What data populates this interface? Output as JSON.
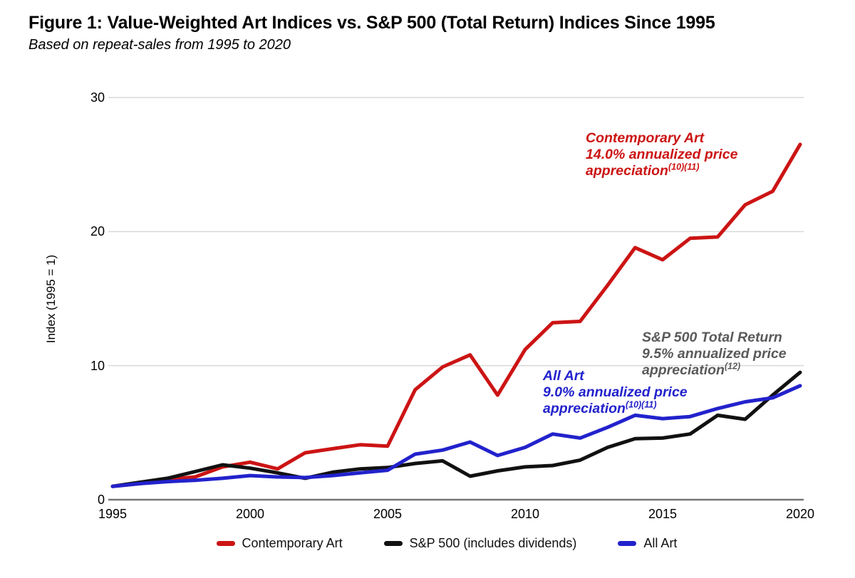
{
  "figure": {
    "title": "Figure 1: Value-Weighted Art Indices vs. S&P 500 (Total Return) Indices Since 1995",
    "subtitle": "Based on repeat-sales from 1995 to 2020"
  },
  "colors": {
    "contemporary_art": "#CC1414",
    "sp500": "#111111",
    "all_art": "#2222CC",
    "annotation_gray": "#5A5A5A",
    "gridline": "#D8D8D8",
    "baseline": "#757575"
  },
  "chart_data": {
    "type": "line",
    "title": "Figure 1: Value-Weighted Art Indices vs. S&P 500 (Total Return) Indices Since 1995",
    "subtitle": "Based on repeat-sales from 1995 to 2020",
    "xlabel": "",
    "ylabel": "Index (1995 = 1)",
    "xlim": [
      1995,
      2020
    ],
    "ylim": [
      0,
      30
    ],
    "x_ticks": [
      1995,
      2000,
      2005,
      2010,
      2015,
      2020
    ],
    "y_ticks": [
      0,
      10,
      20,
      30
    ],
    "grid": "horizontal",
    "legend_position": "bottom",
    "x": [
      1995,
      1996,
      1997,
      1998,
      1999,
      2000,
      2001,
      2002,
      2003,
      2004,
      2005,
      2006,
      2007,
      2008,
      2009,
      2010,
      2011,
      2012,
      2013,
      2014,
      2015,
      2016,
      2017,
      2018,
      2019,
      2020
    ],
    "series": [
      {
        "name": "Contemporary Art",
        "color": "#CC1414",
        "values": [
          1.0,
          1.2,
          1.5,
          1.7,
          2.45,
          2.8,
          2.3,
          3.5,
          3.8,
          4.1,
          4.0,
          8.2,
          9.9,
          10.8,
          7.8,
          11.2,
          13.2,
          13.3,
          16.0,
          18.8,
          17.9,
          19.5,
          19.6,
          22.0,
          23.0,
          26.5
        ]
      },
      {
        "name": "S&P 500 (includes dividends)",
        "color": "#111111",
        "values": [
          1.0,
          1.3,
          1.6,
          2.1,
          2.6,
          2.35,
          2.0,
          1.6,
          2.05,
          2.3,
          2.4,
          2.7,
          2.9,
          1.75,
          2.15,
          2.45,
          2.55,
          2.95,
          3.9,
          4.55,
          4.6,
          4.9,
          6.3,
          6.0,
          7.8,
          9.5
        ]
      },
      {
        "name": "All Art",
        "color": "#2222CC",
        "values": [
          1.0,
          1.2,
          1.35,
          1.45,
          1.6,
          1.8,
          1.7,
          1.65,
          1.8,
          2.0,
          2.2,
          3.4,
          3.7,
          4.3,
          3.3,
          3.9,
          4.9,
          4.6,
          5.4,
          6.3,
          6.05,
          6.2,
          6.8,
          7.3,
          7.6,
          8.5
        ]
      }
    ],
    "annotations": [
      {
        "series": "Contemporary Art",
        "color": "#CC1414",
        "lines": [
          "Contemporary Art",
          "14.0% annualized price",
          "appreciation"
        ],
        "sup": "(10)(11)"
      },
      {
        "series": "S&P 500 Total Return",
        "color": "#5A5A5A",
        "lines": [
          "S&P 500 Total Return",
          "9.5% annualized price",
          "appreciation"
        ],
        "sup": "(12)"
      },
      {
        "series": "All Art",
        "color": "#2222CC",
        "lines": [
          "All Art",
          "9.0% annualized price",
          "appreciation"
        ],
        "sup": "(10)(11)"
      }
    ]
  },
  "legend": {
    "items": [
      {
        "label": "Contemporary Art",
        "color": "#CC1414"
      },
      {
        "label": "S&P 500 (includes dividends)",
        "color": "#111111"
      },
      {
        "label": "All Art",
        "color": "#2222CC"
      }
    ]
  }
}
